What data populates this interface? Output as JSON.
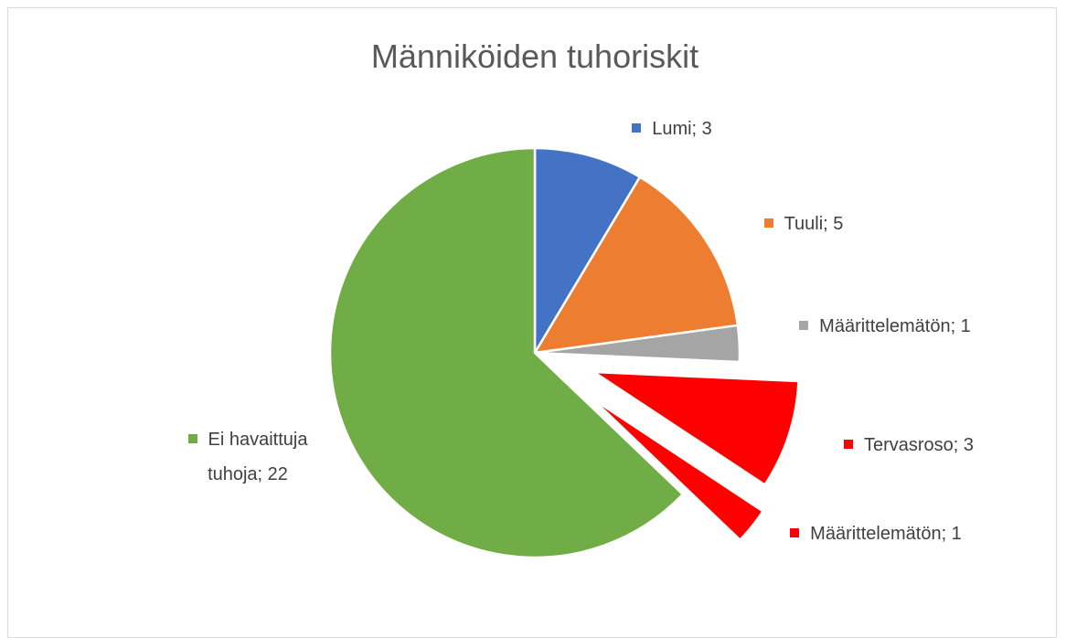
{
  "chart_data": {
    "type": "pie",
    "title": "Männiköiden tuhoriskit",
    "categories": [
      "Lumi",
      "Tuuli",
      "Määrittelemätön",
      "Tervasroso",
      "Määrittelemätön",
      "Ei havaittuja tuhoja"
    ],
    "values": [
      3,
      5,
      1,
      3,
      1,
      22
    ],
    "value_labels": [
      "Lumi; 3",
      "Tuuli; 5",
      "Määrittelemätön; 1",
      "Tervasroso; 3",
      "Määrittelemätön; 1",
      "Ei havaittuja tuhoja; 22"
    ],
    "colors": [
      "#4472c4",
      "#ed7d31",
      "#a5a5a5",
      "#ff0000",
      "#ff0000",
      "#70ad47"
    ]
  }
}
